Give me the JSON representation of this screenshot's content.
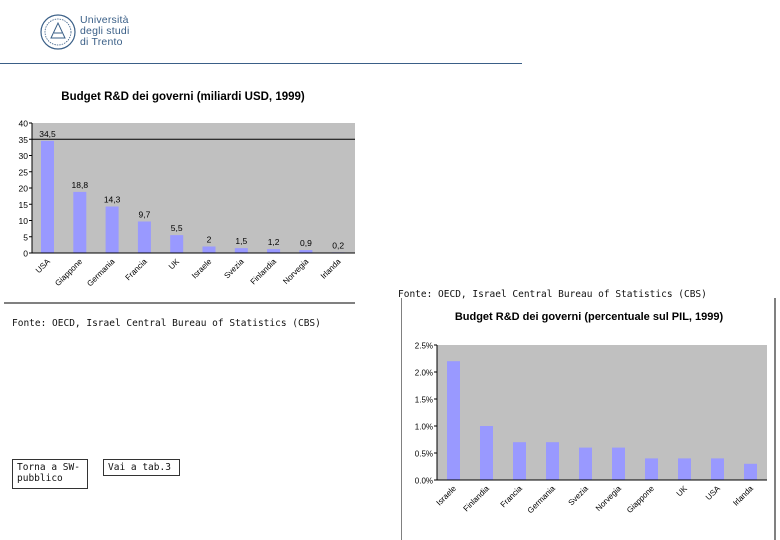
{
  "header": {
    "logo_lines": [
      "Università",
      "degli studi",
      "di Trento"
    ]
  },
  "sources": {
    "chart1": "Fonte: OECD, Israel Central Bureau of Statistics (CBS)",
    "chart2": "Fonte: OECD, Israel Central Bureau of Statistics (CBS)"
  },
  "nav": {
    "back_label": "Torna a SW-pubblico",
    "next_label": "Vai a tab.3"
  },
  "colors": {
    "bar": "#9999ff",
    "plot_bg": "#c0c0c0",
    "brand": "#3a5f87"
  },
  "chart_data": [
    {
      "type": "bar",
      "title": "Budget R&D dei governi (miliardi USD, 1999)",
      "categories": [
        "USA",
        "Giappone",
        "Germania",
        "Francia",
        "UK",
        "Israele",
        "Svezia",
        "Finlandia",
        "Norvegia",
        "Irlanda"
      ],
      "values": [
        34.5,
        18.8,
        14.3,
        9.7,
        5.5,
        2,
        1.5,
        1.2,
        0.9,
        0.2
      ],
      "data_labels": [
        "34,5",
        "18,8",
        "14,3",
        "9,7",
        "5,5",
        "2",
        "1,5",
        "1,2",
        "0,9",
        "0,2"
      ],
      "yticks": [
        "0",
        "5",
        "10",
        "15",
        "20",
        "25",
        "30",
        "35",
        "40"
      ],
      "ylim": [
        0,
        40
      ],
      "xlabel": "",
      "ylabel": ""
    },
    {
      "type": "bar",
      "title": "Budget R&D dei governi (percentuale sul PIL, 1999)",
      "categories": [
        "Israele",
        "Finlandia",
        "Francia",
        "Germania",
        "Svezia",
        "Norvegia",
        "Giappone",
        "UK",
        "USA",
        "Irlanda"
      ],
      "values": [
        2.2,
        1.0,
        0.7,
        0.7,
        0.6,
        0.6,
        0.4,
        0.4,
        0.4,
        0.3
      ],
      "yticks": [
        "0.0%",
        "0.5%",
        "1.0%",
        "1.5%",
        "2.0%",
        "2.5%"
      ],
      "ylim": [
        0,
        2.5
      ],
      "xlabel": "",
      "ylabel": ""
    }
  ]
}
